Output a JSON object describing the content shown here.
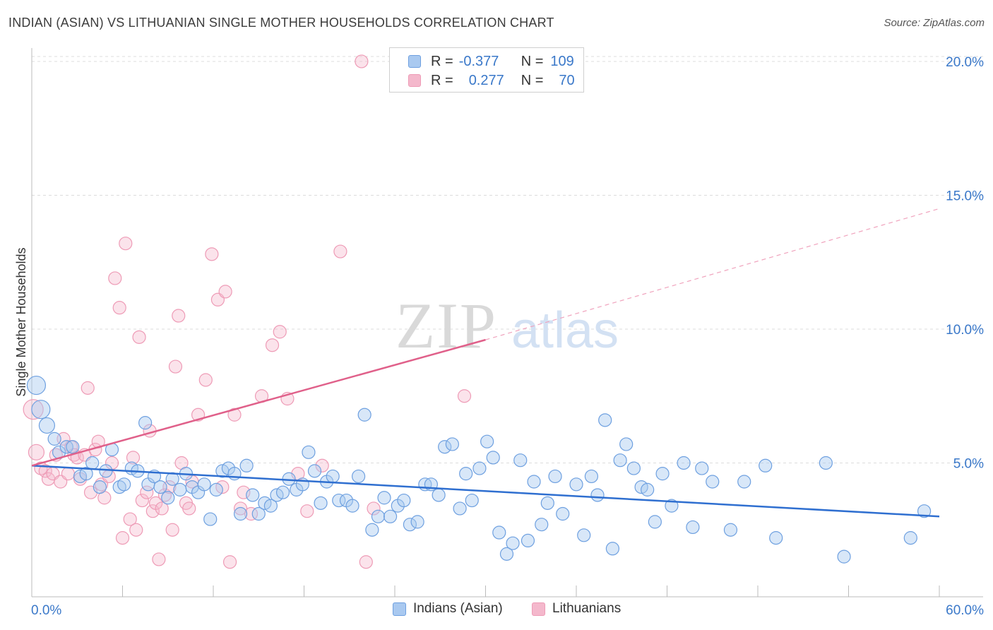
{
  "title": "INDIAN (ASIAN) VS LITHUANIAN SINGLE MOTHER HOUSEHOLDS CORRELATION CHART",
  "source": "Source: ZipAtlas.com",
  "watermark": {
    "zip": "ZIP",
    "atlas": "atlas"
  },
  "legend": {
    "r_label": "R =",
    "n_label": "N =",
    "blue": {
      "r": "-0.377",
      "n": "109",
      "color": "#a9c9f0"
    },
    "pink": {
      "r": "0.277",
      "n": "70",
      "color": "#f4b8cc"
    }
  },
  "bottom_legend": [
    "Indians (Asian)",
    "Lithuanians"
  ],
  "chart_data": {
    "type": "scatter",
    "title": "INDIAN (ASIAN) VS LITHUANIAN SINGLE MOTHER HOUSEHOLDS CORRELATION CHART",
    "xlabel": "",
    "ylabel": "Single Mother Households",
    "xlim": [
      0,
      60
    ],
    "ylim": [
      0,
      20.5
    ],
    "x_tick_labels": [
      "0.0%",
      "60.0%"
    ],
    "y_tick_values": [
      5,
      10,
      15,
      20
    ],
    "y_tick_labels": [
      "5.0%",
      "10.0%",
      "15.0%",
      "20.0%"
    ],
    "grid": true,
    "series": [
      {
        "name": "Indians (Asian)",
        "color": "#6ea0e0",
        "trend": {
          "x0": 0,
          "y0": 4.9,
          "x1": 60,
          "y1": 3.0,
          "color": "#2f6fd0"
        },
        "points": [
          [
            0.3,
            7.9
          ],
          [
            0.6,
            7.0
          ],
          [
            1.0,
            6.4
          ],
          [
            1.5,
            5.9
          ],
          [
            1.8,
            5.4
          ],
          [
            2.3,
            5.6
          ],
          [
            2.7,
            5.6
          ],
          [
            3.2,
            4.5
          ],
          [
            3.6,
            4.6
          ],
          [
            4.0,
            5.0
          ],
          [
            4.5,
            4.1
          ],
          [
            4.9,
            4.7
          ],
          [
            5.3,
            5.5
          ],
          [
            5.8,
            4.1
          ],
          [
            6.1,
            4.2
          ],
          [
            6.6,
            4.8
          ],
          [
            7.0,
            4.7
          ],
          [
            7.5,
            6.5
          ],
          [
            7.7,
            4.2
          ],
          [
            8.1,
            4.5
          ],
          [
            8.5,
            4.1
          ],
          [
            9.0,
            3.7
          ],
          [
            9.3,
            4.4
          ],
          [
            9.8,
            4.0
          ],
          [
            10.2,
            4.6
          ],
          [
            10.6,
            4.1
          ],
          [
            11.0,
            3.9
          ],
          [
            11.4,
            4.2
          ],
          [
            11.8,
            2.9
          ],
          [
            12.2,
            4.0
          ],
          [
            12.6,
            4.7
          ],
          [
            13.0,
            4.8
          ],
          [
            13.4,
            4.6
          ],
          [
            13.8,
            3.1
          ],
          [
            14.2,
            4.9
          ],
          [
            14.6,
            3.8
          ],
          [
            15.0,
            3.1
          ],
          [
            15.4,
            3.5
          ],
          [
            15.8,
            3.4
          ],
          [
            16.2,
            3.8
          ],
          [
            16.6,
            3.9
          ],
          [
            17.0,
            4.4
          ],
          [
            17.5,
            4.0
          ],
          [
            17.9,
            4.2
          ],
          [
            18.3,
            5.4
          ],
          [
            18.7,
            4.7
          ],
          [
            19.1,
            3.5
          ],
          [
            19.5,
            4.3
          ],
          [
            19.9,
            4.5
          ],
          [
            20.3,
            3.6
          ],
          [
            20.8,
            3.6
          ],
          [
            21.2,
            3.4
          ],
          [
            21.6,
            4.5
          ],
          [
            22.0,
            6.8
          ],
          [
            22.5,
            2.5
          ],
          [
            22.9,
            3.0
          ],
          [
            23.3,
            3.7
          ],
          [
            23.7,
            3.0
          ],
          [
            24.2,
            3.4
          ],
          [
            24.6,
            3.6
          ],
          [
            25.0,
            2.7
          ],
          [
            25.5,
            2.8
          ],
          [
            26.0,
            4.2
          ],
          [
            26.4,
            4.2
          ],
          [
            26.9,
            3.8
          ],
          [
            27.3,
            5.6
          ],
          [
            27.8,
            5.7
          ],
          [
            28.3,
            3.3
          ],
          [
            28.7,
            4.6
          ],
          [
            29.1,
            3.6
          ],
          [
            29.6,
            4.8
          ],
          [
            30.1,
            5.8
          ],
          [
            30.5,
            5.2
          ],
          [
            30.9,
            2.4
          ],
          [
            31.4,
            1.6
          ],
          [
            31.8,
            2.0
          ],
          [
            32.3,
            5.1
          ],
          [
            32.8,
            2.1
          ],
          [
            33.2,
            4.3
          ],
          [
            33.7,
            2.7
          ],
          [
            34.1,
            3.5
          ],
          [
            34.6,
            4.5
          ],
          [
            35.1,
            3.1
          ],
          [
            36.0,
            4.2
          ],
          [
            36.5,
            2.3
          ],
          [
            37.0,
            4.5
          ],
          [
            37.4,
            3.8
          ],
          [
            37.9,
            6.6
          ],
          [
            38.4,
            1.8
          ],
          [
            38.9,
            5.1
          ],
          [
            39.3,
            5.7
          ],
          [
            39.8,
            4.8
          ],
          [
            40.3,
            4.1
          ],
          [
            40.7,
            4.0
          ],
          [
            41.2,
            2.8
          ],
          [
            41.7,
            4.6
          ],
          [
            42.3,
            3.4
          ],
          [
            43.1,
            5.0
          ],
          [
            43.7,
            2.6
          ],
          [
            44.3,
            4.8
          ],
          [
            45.0,
            4.3
          ],
          [
            46.2,
            2.5
          ],
          [
            47.1,
            4.3
          ],
          [
            48.5,
            4.9
          ],
          [
            49.2,
            2.2
          ],
          [
            52.5,
            5.0
          ],
          [
            53.7,
            1.5
          ],
          [
            58.1,
            2.2
          ],
          [
            59.0,
            3.2
          ]
        ]
      },
      {
        "name": "Lithuanians",
        "color": "#ee9bb6",
        "trend": {
          "x0": 0,
          "y0": 4.9,
          "x1": 30,
          "y1": 9.6,
          "x2": 60,
          "y2": 14.5,
          "color": "#e0608a"
        },
        "points": [
          [
            0.1,
            7.0
          ],
          [
            0.3,
            5.4
          ],
          [
            0.6,
            4.8
          ],
          [
            0.9,
            4.7
          ],
          [
            1.1,
            4.4
          ],
          [
            1.4,
            4.6
          ],
          [
            1.6,
            5.3
          ],
          [
            1.9,
            4.3
          ],
          [
            2.1,
            5.9
          ],
          [
            2.4,
            4.6
          ],
          [
            2.6,
            5.6
          ],
          [
            2.8,
            5.3
          ],
          [
            3.0,
            5.2
          ],
          [
            3.2,
            4.4
          ],
          [
            3.5,
            5.3
          ],
          [
            3.7,
            7.8
          ],
          [
            3.9,
            3.9
          ],
          [
            4.2,
            5.5
          ],
          [
            4.4,
            5.8
          ],
          [
            4.6,
            4.2
          ],
          [
            4.8,
            3.7
          ],
          [
            5.1,
            4.5
          ],
          [
            5.3,
            5.0
          ],
          [
            5.5,
            11.9
          ],
          [
            5.8,
            10.8
          ],
          [
            6.0,
            2.2
          ],
          [
            6.2,
            13.2
          ],
          [
            6.5,
            2.9
          ],
          [
            6.7,
            5.2
          ],
          [
            6.9,
            2.5
          ],
          [
            7.1,
            9.7
          ],
          [
            7.3,
            3.6
          ],
          [
            7.6,
            3.9
          ],
          [
            7.8,
            6.2
          ],
          [
            8.0,
            3.2
          ],
          [
            8.2,
            3.5
          ],
          [
            8.4,
            1.4
          ],
          [
            8.6,
            3.3
          ],
          [
            8.8,
            3.8
          ],
          [
            9.1,
            4.1
          ],
          [
            9.3,
            2.5
          ],
          [
            9.5,
            8.6
          ],
          [
            9.7,
            10.5
          ],
          [
            9.9,
            5.0
          ],
          [
            10.2,
            3.5
          ],
          [
            10.4,
            3.3
          ],
          [
            10.6,
            4.3
          ],
          [
            11.0,
            6.8
          ],
          [
            11.5,
            8.1
          ],
          [
            11.9,
            12.8
          ],
          [
            12.3,
            11.1
          ],
          [
            12.6,
            4.1
          ],
          [
            12.8,
            11.4
          ],
          [
            13.1,
            1.3
          ],
          [
            13.4,
            6.8
          ],
          [
            13.8,
            3.3
          ],
          [
            14.0,
            3.9
          ],
          [
            14.5,
            3.1
          ],
          [
            15.2,
            7.5
          ],
          [
            15.9,
            9.4
          ],
          [
            16.4,
            9.9
          ],
          [
            16.9,
            7.4
          ],
          [
            17.6,
            4.6
          ],
          [
            18.2,
            3.2
          ],
          [
            19.2,
            4.9
          ],
          [
            20.4,
            12.9
          ],
          [
            21.8,
            20.0
          ],
          [
            22.1,
            1.3
          ],
          [
            22.6,
            3.3
          ],
          [
            28.6,
            7.5
          ]
        ]
      }
    ]
  }
}
